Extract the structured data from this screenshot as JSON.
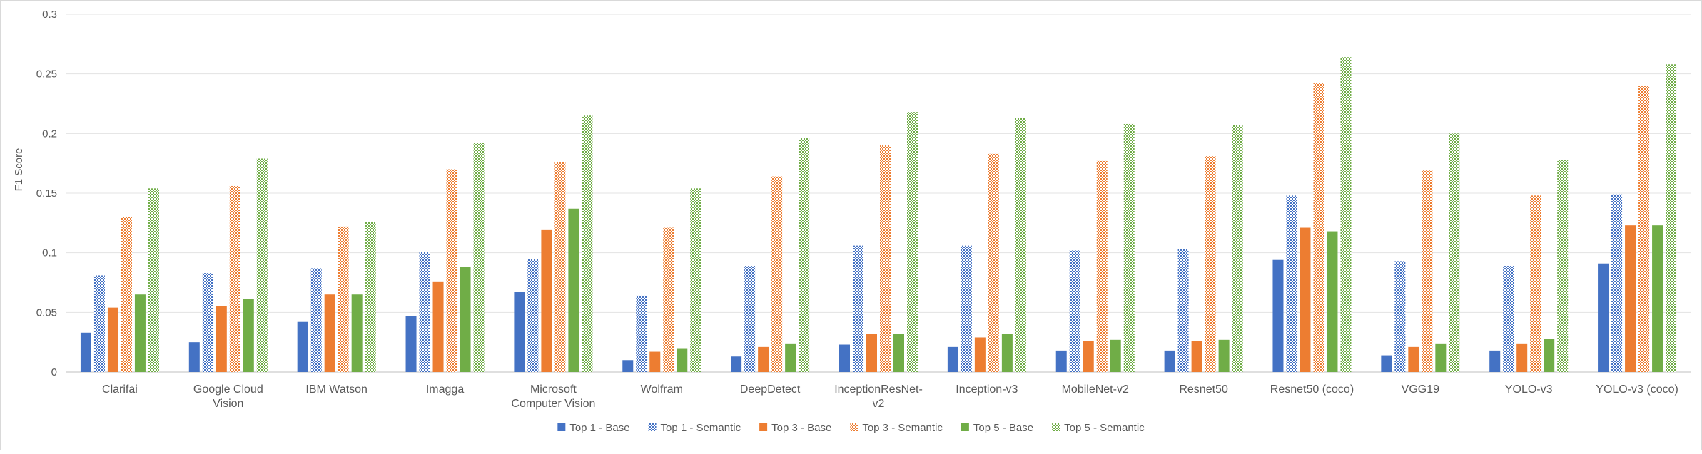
{
  "chart_data": {
    "type": "bar",
    "title": "",
    "xlabel": "",
    "ylabel": "F1 Score",
    "ylim": [
      0,
      0.3
    ],
    "yticks": [
      "0",
      "0.05",
      "0.1",
      "0.15",
      "0.2",
      "0.25",
      "0.3"
    ],
    "grid": true,
    "legend_position": "bottom",
    "categories": [
      [
        "Clarifai"
      ],
      [
        "Google  Cloud",
        "Vision"
      ],
      [
        "IBM  Watson"
      ],
      [
        "Imagga"
      ],
      [
        "Microsoft",
        "Computer  Vision"
      ],
      [
        "Wolfram"
      ],
      [
        "DeepDetect"
      ],
      [
        "InceptionResNet-",
        "v2"
      ],
      [
        "Inception-v3"
      ],
      [
        "MobileNet-v2"
      ],
      [
        "Resnet50"
      ],
      [
        "Resnet50  (coco)"
      ],
      [
        "VGG19"
      ],
      [
        "YOLO-v3"
      ],
      [
        "YOLO-v3  (coco)"
      ]
    ],
    "series": [
      {
        "name": "Top 1 - Base",
        "color": "#4472C4",
        "pattern": "solid",
        "values": [
          0.033,
          0.025,
          0.042,
          0.047,
          0.067,
          0.01,
          0.013,
          0.023,
          0.021,
          0.018,
          0.018,
          0.094,
          0.014,
          0.018,
          0.091
        ]
      },
      {
        "name": "Top 1 - Semantic",
        "color": "#4472C4",
        "pattern": "checker",
        "values": [
          0.081,
          0.083,
          0.087,
          0.101,
          0.095,
          0.064,
          0.089,
          0.106,
          0.106,
          0.102,
          0.103,
          0.148,
          0.093,
          0.089,
          0.149
        ]
      },
      {
        "name": "Top 3 - Base",
        "color": "#ED7D31",
        "pattern": "solid",
        "values": [
          0.054,
          0.055,
          0.065,
          0.076,
          0.119,
          0.017,
          0.021,
          0.032,
          0.029,
          0.026,
          0.026,
          0.121,
          0.021,
          0.024,
          0.123
        ]
      },
      {
        "name": "Top 3 - Semantic",
        "color": "#ED7D31",
        "pattern": "checker",
        "values": [
          0.13,
          0.156,
          0.122,
          0.17,
          0.176,
          0.121,
          0.164,
          0.19,
          0.183,
          0.177,
          0.181,
          0.242,
          0.169,
          0.148,
          0.24
        ]
      },
      {
        "name": "Top 5 - Base",
        "color": "#70AD47",
        "pattern": "solid",
        "values": [
          0.065,
          0.061,
          0.065,
          0.088,
          0.137,
          0.02,
          0.024,
          0.032,
          0.032,
          0.027,
          0.027,
          0.118,
          0.024,
          0.028,
          0.123
        ]
      },
      {
        "name": "Top 5 - Semantic",
        "color": "#70AD47",
        "pattern": "checker",
        "values": [
          0.154,
          0.179,
          0.126,
          0.192,
          0.215,
          0.154,
          0.196,
          0.218,
          0.213,
          0.208,
          0.207,
          0.264,
          0.2,
          0.178,
          0.258
        ]
      }
    ]
  }
}
